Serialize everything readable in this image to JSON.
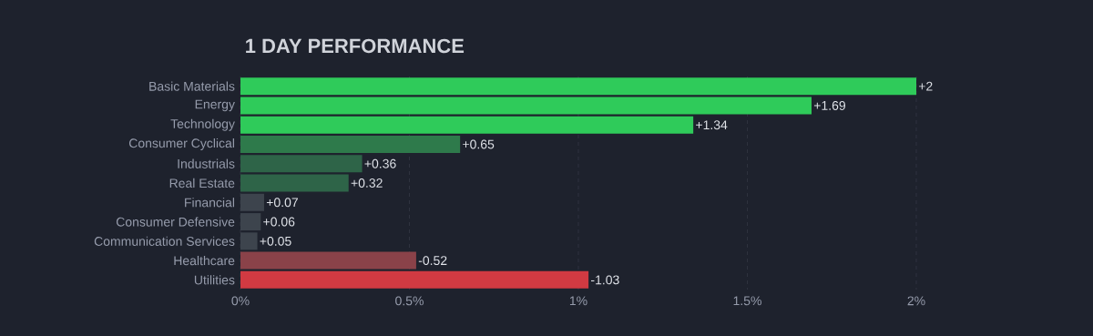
{
  "chart_data": {
    "type": "bar",
    "orientation": "horizontal",
    "title": "1 DAY PERFORMANCE",
    "categories": [
      "Basic Materials",
      "Energy",
      "Technology",
      "Consumer Cyclical",
      "Industrials",
      "Real Estate",
      "Financial",
      "Consumer Defensive",
      "Communication Services",
      "Healthcare",
      "Utilities"
    ],
    "values": [
      2,
      1.69,
      1.34,
      0.65,
      0.36,
      0.32,
      0.07,
      0.06,
      0.05,
      -0.52,
      -1.03
    ],
    "base": [
      0,
      0,
      0,
      0,
      0,
      0,
      0,
      0,
      0,
      0.52,
      1.03
    ],
    "value_labels": [
      "+2",
      "+1.69",
      "+1.34",
      "+0.65",
      "+0.36",
      "+0.32",
      "+0.07",
      "+0.06",
      "+0.05",
      "-0.52",
      "-1.03"
    ],
    "colors": [
      "#2fcb5a",
      "#2fcb5a",
      "#2fcb5a",
      "#2e7a4b",
      "#2e6448",
      "#2e6448",
      "#3d444d",
      "#3d444d",
      "#3d444d",
      "#8a4249",
      "#d13a42"
    ],
    "xlim": [
      0,
      2
    ],
    "xticks": [
      {
        "value": 0,
        "label": "0%"
      },
      {
        "value": 0.5,
        "label": "0.5%"
      },
      {
        "value": 1,
        "label": "1%"
      },
      {
        "value": 1.5,
        "label": "1.5%"
      },
      {
        "value": 2,
        "label": "2%"
      }
    ],
    "grid": "x"
  }
}
